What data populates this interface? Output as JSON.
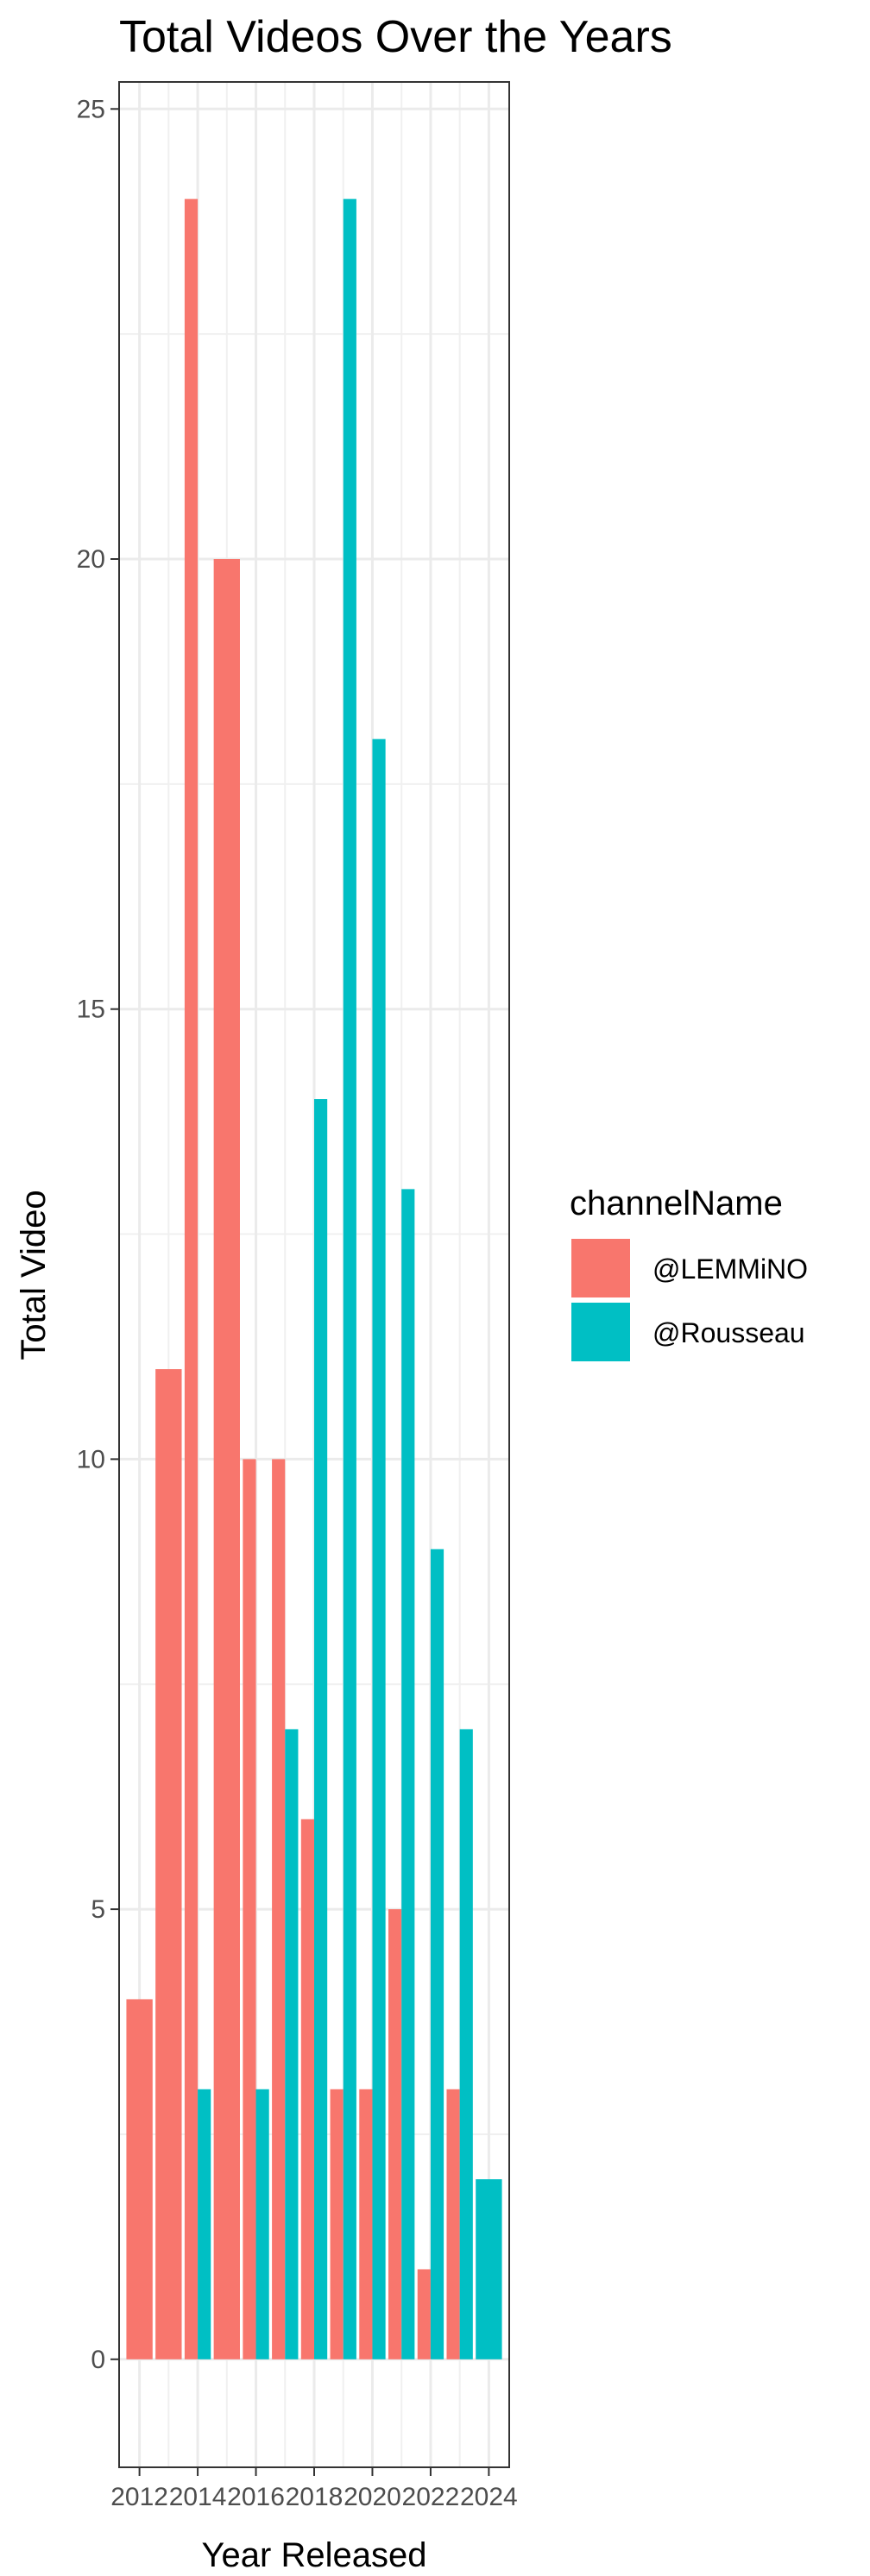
{
  "chart_data": {
    "type": "bar",
    "title": "Total Videos Over the Years",
    "xlabel": "Year Released",
    "ylabel": "Total Video",
    "x": [
      2012,
      2013,
      2014,
      2015,
      2016,
      2017,
      2018,
      2019,
      2020,
      2021,
      2022,
      2023,
      2024
    ],
    "x_ticks": [
      "2012",
      "2014",
      "2016",
      "2018",
      "2020",
      "2022",
      "2024"
    ],
    "y_ticks": [
      "0",
      "5",
      "10",
      "15",
      "20",
      "25"
    ],
    "ylim": [
      -1.2,
      25.3
    ],
    "xlim": [
      2011.3,
      2024.7
    ],
    "grid": true,
    "legend": {
      "title": "channelName",
      "position": "right"
    },
    "series": [
      {
        "name": "@LEMMiNO",
        "color": "#F8766D",
        "values": [
          4,
          11,
          24,
          20,
          10,
          10,
          6,
          3,
          3,
          5,
          1,
          3,
          null
        ]
      },
      {
        "name": "@Rousseau",
        "color": "#00BFC4",
        "values": [
          null,
          null,
          3,
          null,
          3,
          7,
          14,
          24,
          18,
          13,
          9,
          7,
          2
        ]
      }
    ]
  }
}
